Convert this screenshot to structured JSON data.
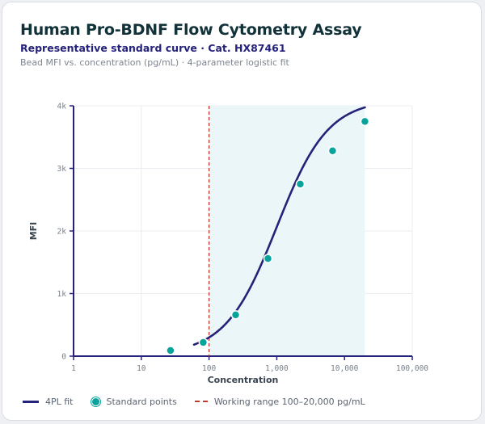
{
  "header": {
    "title": "Human Pro-BDNF Flow Cytometry Assay",
    "subtitle": "Representative standard curve · Cat. HX87461",
    "caption": "Bead MFI vs. concentration (pg/mL) · 4-parameter logistic fit"
  },
  "legend": {
    "fit_label": "4PL fit",
    "points_label": "Standard points",
    "range_label": "Working range 100–20,000 pg/mL"
  },
  "colors": {
    "fit": "#25227a",
    "points": "#0aa39b",
    "range_line": "#c0392b",
    "range_fill": "#eaf6f7"
  },
  "chart_data": {
    "type": "scatter",
    "xlabel": "Concentration",
    "ylabel": "MFI",
    "x_scale": "log",
    "xlim": [
      1,
      100000
    ],
    "ylim": [
      0,
      4000
    ],
    "x_ticks": [
      1,
      10,
      100,
      1000,
      10000,
      100000
    ],
    "x_tick_labels": [
      "1",
      "10",
      "100",
      "1,000",
      "10,000",
      "100,000"
    ],
    "y_ticks": [
      0,
      1000,
      2000,
      3000,
      4000
    ],
    "y_tick_labels": [
      "0",
      "1k",
      "2k",
      "3k",
      "4k"
    ],
    "grid": true,
    "legend_position": "bottom",
    "working_range": [
      100,
      20000
    ],
    "fit": {
      "name": "4PL fit",
      "model": "4PL",
      "x_range": [
        60,
        20000
      ],
      "params": {
        "bottom": 30,
        "top": 4100,
        "ec50": 1000,
        "hill": 1.15
      }
    },
    "series": [
      {
        "name": "Standard points",
        "x": [
          27,
          82,
          247,
          741,
          2222,
          6667,
          20000
        ],
        "y": [
          90,
          220,
          660,
          1560,
          2750,
          3280,
          3750
        ]
      }
    ]
  }
}
